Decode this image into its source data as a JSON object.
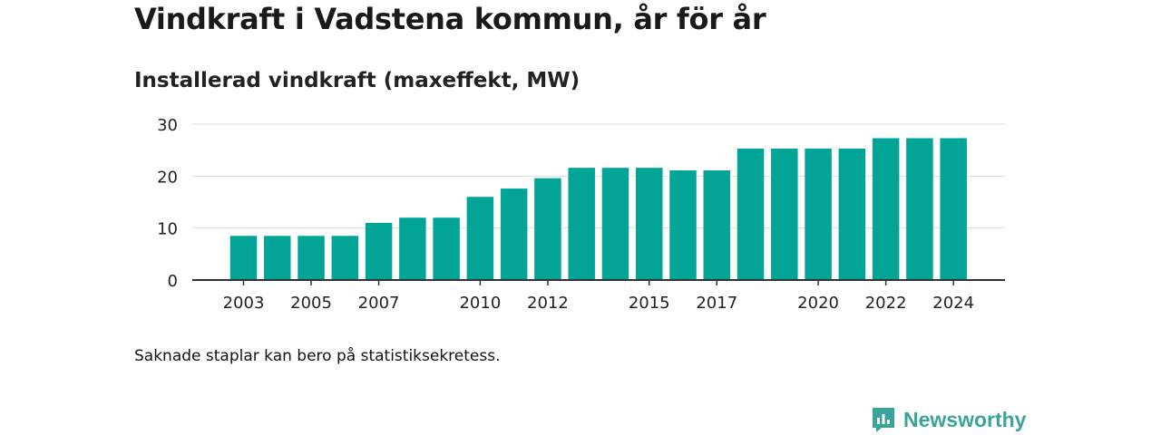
{
  "header": {
    "title": "Vindkraft i Vadstena kommun, år för år",
    "subtitle": "Installerad vindkraft (maxeffekt, MW)"
  },
  "footnote": "Saknade staplar kan bero på statistiksekretess.",
  "brand": {
    "name": "Newsworthy",
    "color": "#3aa39c",
    "icon": "newsworthy-logo-icon"
  },
  "colors": {
    "bar": "#03a498",
    "grid": "#dddddd",
    "axis": "#333333"
  },
  "chart_data": {
    "type": "bar",
    "title": "Installerad vindkraft (maxeffekt, MW)",
    "categories": [
      "2003",
      "2004",
      "2005",
      "2006",
      "2007",
      "2008",
      "2009",
      "2010",
      "2011",
      "2012",
      "2013",
      "2014",
      "2015",
      "2016",
      "2017",
      "2018",
      "2019",
      "2020",
      "2021",
      "2022",
      "2023",
      "2024"
    ],
    "values": [
      8.5,
      8.5,
      8.5,
      8.5,
      11,
      12,
      12,
      16,
      17.6,
      19.6,
      21.6,
      21.6,
      21.6,
      21.1,
      21.1,
      25.3,
      25.3,
      25.3,
      25.3,
      27.3,
      27.3,
      27.3
    ],
    "xtick_labels": [
      "2003",
      "2005",
      "2007",
      "2010",
      "2012",
      "2015",
      "2017",
      "2020",
      "2022",
      "2024"
    ],
    "yticks": [
      0,
      10,
      20,
      30
    ],
    "ylim": [
      0,
      30
    ],
    "grid": true
  }
}
